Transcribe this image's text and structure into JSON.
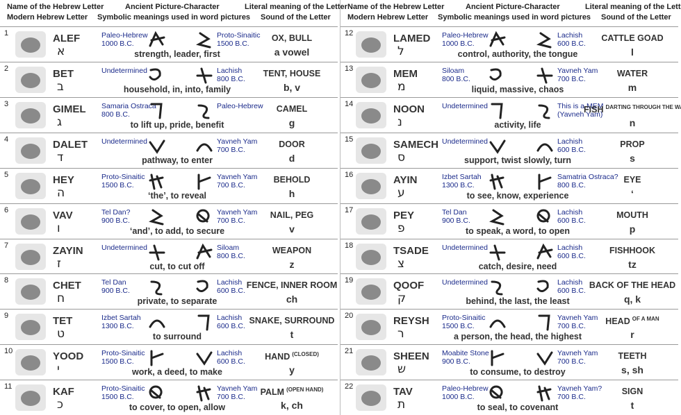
{
  "columns": {
    "name": "Name of the Hebrew Letter",
    "modern": "Modern Hebrew Letter",
    "ancient": "Ancient Picture-Character",
    "symbolic": "Symbolic meanings used in word pictures",
    "literal": "Literal meaning of the Letter",
    "sound": "Sound of the Letter"
  },
  "panels": [
    {
      "rows": [
        {
          "number": 1,
          "name": "ALEF",
          "letter": "א",
          "source1": {
            "name": "Paleo-Hebrew",
            "date": "1000 B.C."
          },
          "source2": {
            "name": "Proto-Sinaitic",
            "date": "1500 B.C."
          },
          "meaning": "strength, leader, first",
          "literal": "OX, BULL",
          "sound": "a vowel"
        },
        {
          "number": 2,
          "name": "BET",
          "letter": "ב",
          "source1": {
            "name": "Undetermined"
          },
          "source2": {
            "name": "Lachish",
            "date": "800 B.C."
          },
          "meaning": "household, in, into, family",
          "literal": "TENT, HOUSE",
          "sound": "b, v"
        },
        {
          "number": 3,
          "name": "GIMEL",
          "letter": "ג",
          "source1": {
            "name": "Samaria Ostraca",
            "date": "800 B.C."
          },
          "source2": {
            "name": "Paleo-Hebrew"
          },
          "meaning": "to lift up, pride, benefit",
          "literal": "CAMEL",
          "sound": "g"
        },
        {
          "number": 4,
          "name": "DALET",
          "letter": "ד",
          "source1": {
            "name": "Undetermined"
          },
          "source2": {
            "name": "Yavneh Yam",
            "date": "700 B.C."
          },
          "meaning": "pathway, to enter",
          "literal": "DOOR",
          "sound": "d"
        },
        {
          "number": 5,
          "name": "HEY",
          "letter": "ה",
          "source1": {
            "name": "Proto-Sinaitic",
            "date": "1500 B.C."
          },
          "source2": {
            "name": "Yavneh Yam",
            "date": "700 B.C."
          },
          "meaning": "‘the’, to reveal",
          "literal": "BEHOLD",
          "sound": "h"
        },
        {
          "number": 6,
          "name": "VAV",
          "letter": "ו",
          "source1": {
            "name": "Tel Dan?",
            "date": "900 B.C."
          },
          "source2": {
            "name": "Yavneh Yam",
            "date": "700 B.C."
          },
          "meaning": "‘and’, to add, to secure",
          "literal": "NAIL, PEG",
          "sound": "v"
        },
        {
          "number": 7,
          "name": "ZAYIN",
          "letter": "ז",
          "source1": {
            "name": "Undetermined"
          },
          "source2": {
            "name": "Siloam",
            "date": "800 B.C."
          },
          "meaning": "cut, to cut off",
          "literal": "WEAPON",
          "sound": "z"
        },
        {
          "number": 8,
          "name": "CHET",
          "letter": "ח",
          "source1": {
            "name": "Tel Dan",
            "date": "900 B.C."
          },
          "source2": {
            "name": "Lachish",
            "date": "600 B.C."
          },
          "meaning": "private, to separate",
          "literal": "FENCE, INNER ROOM",
          "sound": "ch"
        },
        {
          "number": 9,
          "name": "TET",
          "letter": "ט",
          "source1": {
            "name": "Izbet Sartah",
            "date": "1300 B.C."
          },
          "source2": {
            "name": "Lachish",
            "date": "600 B.C."
          },
          "meaning": "to surround",
          "literal": "SNAKE, SURROUND",
          "sound": "t"
        },
        {
          "number": 10,
          "name": "YOOD",
          "letter": "י",
          "source1": {
            "name": "Proto-Sinaitic",
            "date": "1500 B.C."
          },
          "source2": {
            "name": "Lachish",
            "date": "600 B.C."
          },
          "meaning": "work, a deed, to make",
          "literal": "HAND",
          "literal_note": "(CLOSED)",
          "sound": "y"
        },
        {
          "number": 11,
          "name": "KAF",
          "letter": "כ",
          "source1": {
            "name": "Proto-Sinaitic",
            "date": "1500 B.C."
          },
          "source2": {
            "name": "Yavneh Yam",
            "date": "700 B.C."
          },
          "meaning": "to cover, to open, allow",
          "literal": "PALM",
          "literal_note": "(OPEN HAND)",
          "sound": "k, ch"
        }
      ]
    },
    {
      "rows": [
        {
          "number": 12,
          "name": "LAMED",
          "letter": "ל",
          "source1": {
            "name": "Paleo-Hebrew",
            "date": "1000 B.C."
          },
          "source2": {
            "name": "Lachish",
            "date": "600 B.C."
          },
          "meaning": "control, authority, the tongue",
          "literal": "CATTLE GOAD",
          "sound": "l"
        },
        {
          "number": 13,
          "name": "MEM",
          "letter": "מ",
          "source1": {
            "name": "Siloam",
            "date": "800 B.C."
          },
          "source2": {
            "name": "Yavneh Yam",
            "date": "700 B.C."
          },
          "meaning": "liquid, massive, chaos",
          "literal": "WATER",
          "sound": "m"
        },
        {
          "number": 14,
          "name": "NOON",
          "letter": "נ",
          "source1": {
            "name": "Undetermined"
          },
          "source2": {
            "name": "This is a MEM",
            "date": "(Yavneh Yam)"
          },
          "meaning": "activity, life",
          "literal": "FISH",
          "literal_note": "DARTING THROUGH THE WATER",
          "sound": "n"
        },
        {
          "number": 15,
          "name": "SAMECH",
          "letter": "ס",
          "source1": {
            "name": "Undetermined"
          },
          "source2": {
            "name": "Lachish",
            "date": "600 B.C."
          },
          "meaning": "support, twist slowly, turn",
          "literal": "PROP",
          "sound": "s"
        },
        {
          "number": 16,
          "name": "AYIN",
          "letter": "ע",
          "source1": {
            "name": "Izbet Sartah",
            "date": "1300 B.C."
          },
          "source2": {
            "name": "Samatria Ostraca?",
            "date": "800 B.C."
          },
          "meaning": "to see, know, experience",
          "literal": "EYE",
          "sound": "‘"
        },
        {
          "number": 17,
          "name": "PEY",
          "letter": "פ",
          "source1": {
            "name": "Tel Dan",
            "date": "900 B.C."
          },
          "source2": {
            "name": "Lachish",
            "date": "600 B.C."
          },
          "meaning": "to speak, a word, to open",
          "literal": "MOUTH",
          "sound": "p"
        },
        {
          "number": 18,
          "name": "TSADE",
          "letter": "צ",
          "source1": {
            "name": "Undetermined"
          },
          "source2": {
            "name": "Lachish",
            "date": "600 B.C."
          },
          "meaning": "catch, desire, need",
          "literal": "FISHHOOK",
          "sound": "tz"
        },
        {
          "number": 19,
          "name": "QOOF",
          "letter": "ק",
          "source1": {
            "name": "Undetermined"
          },
          "source2": {
            "name": "Lachish",
            "date": "600 B.C."
          },
          "meaning": "behind, the last, the least",
          "literal": "BACK OF THE HEAD",
          "sound": "q, k"
        },
        {
          "number": 20,
          "name": "REYSH",
          "letter": "ר",
          "source1": {
            "name": "Proto-Sinaitic",
            "date": "1500 B.C."
          },
          "source2": {
            "name": "Yavneh Yam",
            "date": "700 B.C."
          },
          "meaning": "a person, the head, the highest",
          "literal": "HEAD",
          "literal_note": "OF A MAN",
          "sound": "r"
        },
        {
          "number": 21,
          "name": "SHEEN",
          "letter": "ש",
          "source1": {
            "name": "Moabite Stone",
            "date": "900 B.C."
          },
          "source2": {
            "name": "Yavneh Yam",
            "date": "700 B.C."
          },
          "meaning": "to consume, to destroy",
          "literal": "TEETH",
          "sound": "s, sh"
        },
        {
          "number": 22,
          "name": "TAV",
          "letter": "ת",
          "source1": {
            "name": "Paleo-Hebrew",
            "date": "1000 B.C."
          },
          "source2": {
            "name": "Yavneh Yam?",
            "date": "700 B.C."
          },
          "meaning": "to seal, to covenant",
          "literal": "SIGN",
          "sound": "t"
        }
      ]
    }
  ]
}
